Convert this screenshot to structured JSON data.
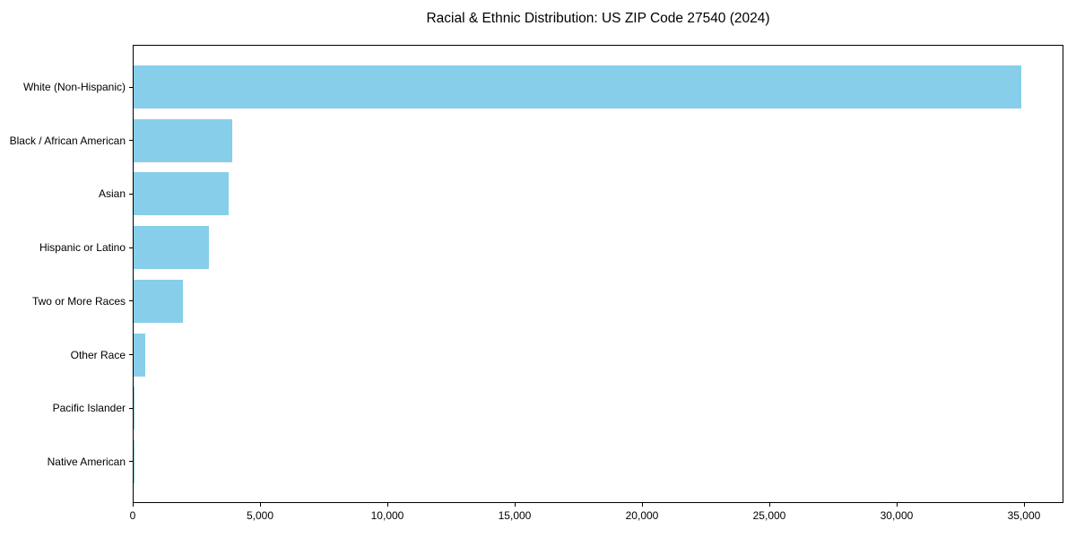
{
  "chart_data": {
    "type": "bar",
    "orientation": "horizontal",
    "title": "Racial & Ethnic Distribution: US ZIP Code 27540 (2024)",
    "categories": [
      "White (Non-Hispanic)",
      "Black / African American",
      "Asian",
      "Hispanic or Latino",
      "Two or More Races",
      "Other Race",
      "Pacific Islander",
      "Native American"
    ],
    "values": [
      34850,
      3880,
      3740,
      2960,
      1940,
      460,
      40,
      30
    ],
    "xlabel": "",
    "ylabel": "",
    "xlim": [
      0,
      36550
    ],
    "xticks": [
      0,
      5000,
      10000,
      15000,
      20000,
      25000,
      30000,
      35000
    ],
    "xtick_labels": [
      "0",
      "5,000",
      "10,000",
      "15,000",
      "20,000",
      "25,000",
      "30,000",
      "35,000"
    ],
    "bar_color": "#87CEEB",
    "background_color": "#FFFFFF",
    "grid": false,
    "legend": null
  }
}
